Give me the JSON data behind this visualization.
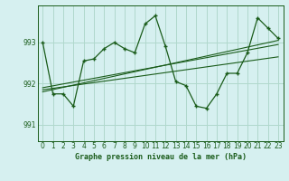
{
  "title": "Graphe pression niveau de la mer (hPa)",
  "bg_color": "#d6f0f0",
  "grid_color": "#b0d8cc",
  "line_color": "#1a5c1a",
  "ylim": [
    990.6,
    993.9
  ],
  "yticks": [
    991,
    992,
    993
  ],
  "xlim": [
    -0.5,
    23.5
  ],
  "xticks": [
    0,
    1,
    2,
    3,
    4,
    5,
    6,
    7,
    8,
    9,
    10,
    11,
    12,
    13,
    14,
    15,
    16,
    17,
    18,
    19,
    20,
    21,
    22,
    23
  ],
  "series1": [
    993.0,
    991.75,
    991.75,
    991.45,
    992.55,
    992.6,
    992.85,
    993.0,
    992.85,
    992.75,
    993.45,
    993.65,
    992.9,
    992.05,
    991.95,
    991.45,
    991.4,
    991.75,
    992.25,
    992.25,
    992.75,
    993.6,
    993.35,
    993.1
  ],
  "trend1_x": [
    0,
    23
  ],
  "trend1_y": [
    991.8,
    993.05
  ],
  "trend2_x": [
    0,
    23
  ],
  "trend2_y": [
    991.85,
    992.65
  ],
  "trend3_x": [
    0,
    23
  ],
  "trend3_y": [
    991.9,
    992.95
  ]
}
